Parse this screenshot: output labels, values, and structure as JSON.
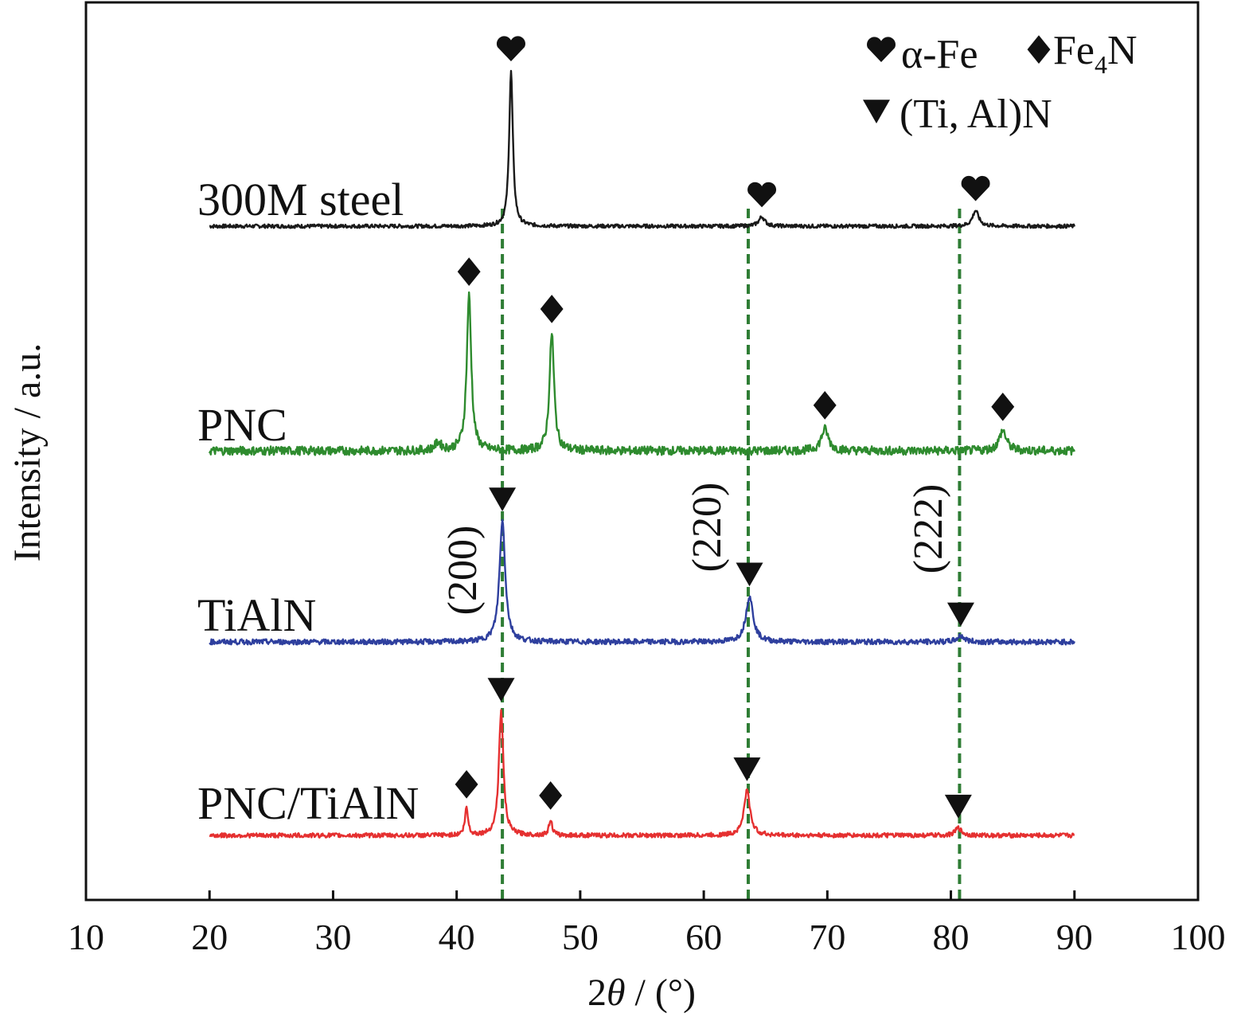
{
  "chart_data": {
    "type": "line",
    "title": "",
    "xlabel_prefix": "2",
    "xlabel_symbol": "θ",
    "xlabel_suffix": " / (°)",
    "ylabel": "Intensity / a.u.",
    "xlim": [
      10,
      100
    ],
    "xticks": [
      10,
      20,
      30,
      40,
      50,
      60,
      70,
      80,
      90,
      100
    ],
    "grid": false,
    "legend": {
      "position": "top-right",
      "entries": [
        {
          "marker": "heart",
          "label": "α-Fe"
        },
        {
          "marker": "diamond",
          "label_main": "Fe",
          "label_sub": "4",
          "label_tail": "N"
        },
        {
          "marker": "triangle-down",
          "label": "(Ti, Al)N"
        }
      ]
    },
    "reference_lines": [
      {
        "x": 43.7,
        "plane": "(200)"
      },
      {
        "x": 63.6,
        "plane": "(220)"
      },
      {
        "x": 80.7,
        "plane": "(222)"
      }
    ],
    "series": [
      {
        "name": "300M steel",
        "color": "#1a1a1a",
        "baseline": 0.0,
        "x_range": [
          20,
          90
        ],
        "noise": 0.012,
        "peaks": [
          {
            "x": 44.4,
            "height": 1.0,
            "width": 0.18,
            "marker": "heart"
          },
          {
            "x": 64.7,
            "height": 0.06,
            "width": 0.3,
            "marker": "heart"
          },
          {
            "x": 82.0,
            "height": 0.1,
            "width": 0.3,
            "marker": "heart"
          }
        ]
      },
      {
        "name": "PNC",
        "color": "#2e8b2e",
        "baseline": 0.0,
        "x_range": [
          20,
          90
        ],
        "noise": 0.028,
        "peaks": [
          {
            "x": 38.5,
            "height": 0.05,
            "width": 0.3,
            "marker": ""
          },
          {
            "x": 41.0,
            "height": 1.0,
            "width": 0.22,
            "marker": "diamond"
          },
          {
            "x": 47.7,
            "height": 0.76,
            "width": 0.22,
            "marker": "diamond"
          },
          {
            "x": 69.8,
            "height": 0.14,
            "width": 0.35,
            "marker": "diamond"
          },
          {
            "x": 84.2,
            "height": 0.13,
            "width": 0.35,
            "marker": "diamond"
          }
        ]
      },
      {
        "name": "TiAlN",
        "color": "#2e3f9e",
        "baseline": 0.0,
        "x_range": [
          20,
          90
        ],
        "noise": 0.022,
        "peaks": [
          {
            "x": 43.7,
            "height": 1.0,
            "width": 0.28,
            "marker": "triangle-down"
          },
          {
            "x": 63.7,
            "height": 0.38,
            "width": 0.35,
            "marker": "triangle-down"
          },
          {
            "x": 80.8,
            "height": 0.05,
            "width": 0.35,
            "marker": "triangle-down"
          }
        ]
      },
      {
        "name": "PNC/TiAlN",
        "color": "#e53030",
        "baseline": 0.0,
        "x_range": [
          20,
          90
        ],
        "noise": 0.018,
        "peaks": [
          {
            "x": 40.8,
            "height": 0.22,
            "width": 0.15,
            "marker": "diamond"
          },
          {
            "x": 43.6,
            "height": 1.0,
            "width": 0.22,
            "marker": "triangle-down"
          },
          {
            "x": 47.6,
            "height": 0.13,
            "width": 0.15,
            "marker": "diamond"
          },
          {
            "x": 63.5,
            "height": 0.36,
            "width": 0.3,
            "marker": "triangle-down"
          },
          {
            "x": 80.6,
            "height": 0.06,
            "width": 0.3,
            "marker": "triangle-down"
          }
        ]
      }
    ]
  }
}
